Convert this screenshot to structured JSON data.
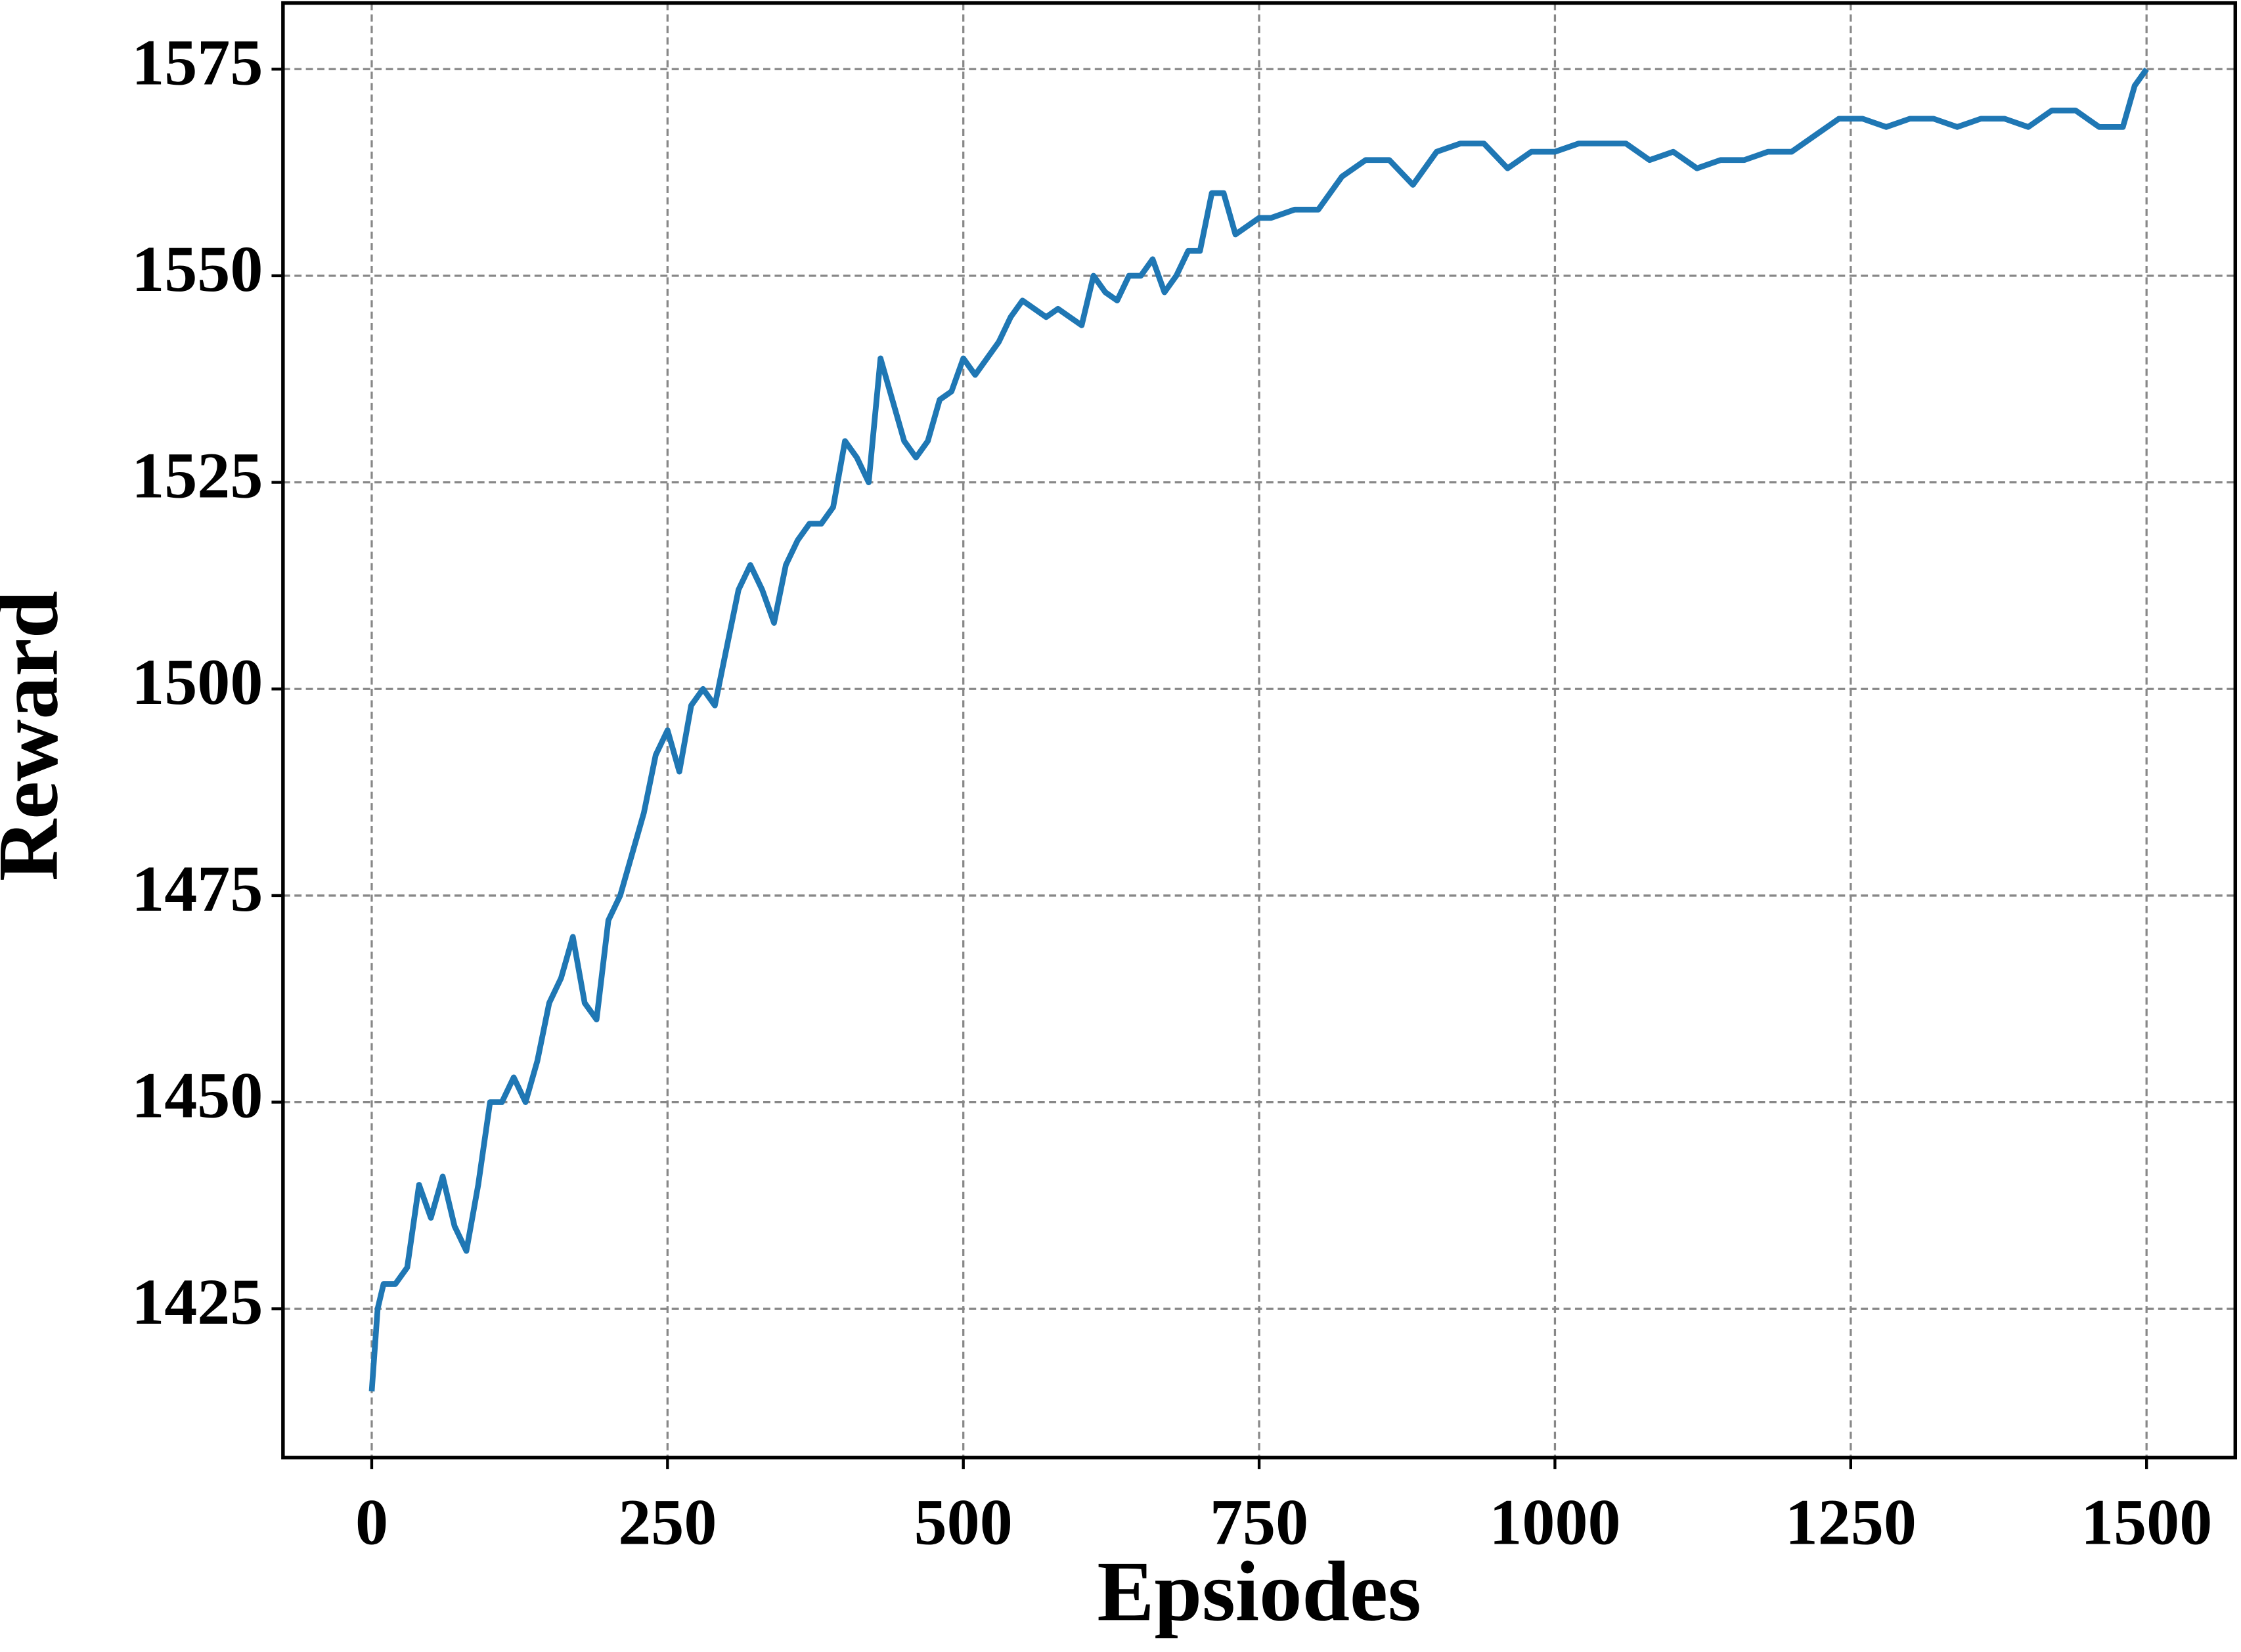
{
  "chart_data": {
    "type": "line",
    "x_label": "Epsiodes",
    "y_label": "Reward",
    "x": [
      0,
      5,
      10,
      20,
      30,
      40,
      50,
      60,
      70,
      80,
      90,
      100,
      110,
      120,
      130,
      140,
      150,
      160,
      170,
      180,
      190,
      200,
      210,
      220,
      230,
      240,
      250,
      260,
      270,
      280,
      290,
      300,
      310,
      320,
      330,
      340,
      350,
      360,
      370,
      380,
      390,
      400,
      410,
      420,
      430,
      440,
      450,
      460,
      470,
      480,
      490,
      500,
      510,
      520,
      530,
      540,
      550,
      560,
      570,
      580,
      590,
      600,
      610,
      620,
      630,
      640,
      650,
      660,
      670,
      680,
      690,
      700,
      710,
      720,
      730,
      740,
      750,
      760,
      780,
      800,
      820,
      840,
      860,
      880,
      900,
      920,
      940,
      960,
      980,
      1000,
      1020,
      1040,
      1060,
      1080,
      1100,
      1120,
      1140,
      1160,
      1180,
      1200,
      1220,
      1240,
      1260,
      1280,
      1300,
      1320,
      1340,
      1360,
      1380,
      1400,
      1420,
      1440,
      1460,
      1480,
      1490,
      1500
    ],
    "values": [
      1415,
      1425,
      1428,
      1428,
      1430,
      1440,
      1436,
      1441,
      1435,
      1432,
      1440,
      1450,
      1450,
      1453,
      1450,
      1455,
      1462,
      1465,
      1470,
      1462,
      1460,
      1472,
      1475,
      1480,
      1485,
      1492,
      1495,
      1490,
      1498,
      1500,
      1498,
      1505,
      1512,
      1515,
      1512,
      1508,
      1515,
      1518,
      1520,
      1520,
      1522,
      1530,
      1528,
      1525,
      1540,
      1535,
      1530,
      1528,
      1530,
      1535,
      1536,
      1540,
      1538,
      1540,
      1542,
      1545,
      1547,
      1546,
      1545,
      1546,
      1545,
      1544,
      1550,
      1548,
      1547,
      1550,
      1550,
      1552,
      1548,
      1550,
      1553,
      1553,
      1560,
      1560,
      1555,
      1556,
      1557,
      1557,
      1558,
      1558,
      1562,
      1564,
      1564,
      1561,
      1565,
      1566,
      1566,
      1563,
      1565,
      1565,
      1566,
      1566,
      1566,
      1564,
      1565,
      1563,
      1564,
      1564,
      1565,
      1565,
      1567,
      1569,
      1569,
      1568,
      1569,
      1569,
      1568,
      1569,
      1569,
      1568,
      1570,
      1570,
      1568,
      1568,
      1573,
      1575
    ],
    "color": "#1f77b4",
    "xlim": [
      -75,
      1575
    ],
    "xticks": [
      0,
      250,
      500,
      750,
      1000,
      1250,
      1500
    ],
    "ylim": [
      1407,
      1583
    ],
    "yticks": [
      1425,
      1450,
      1475,
      1500,
      1525,
      1550,
      1575
    ],
    "grid": true
  }
}
